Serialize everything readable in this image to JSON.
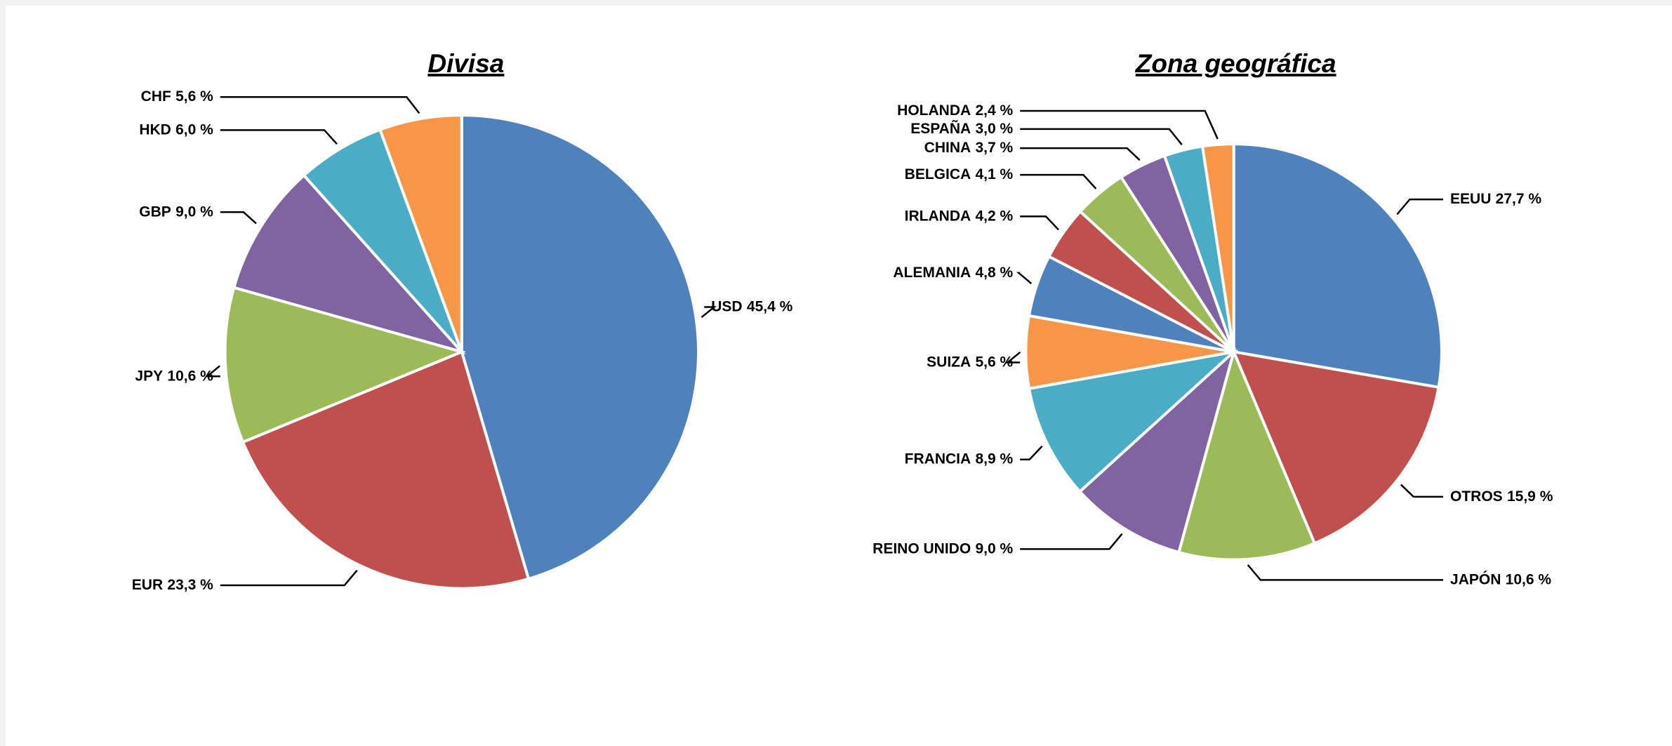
{
  "chart_data": [
    {
      "type": "pie",
      "title": "Divisa",
      "categories": [
        "USD",
        "EUR",
        "JPY",
        "GBP",
        "HKD",
        "CHF"
      ],
      "values": [
        45.4,
        23.3,
        10.6,
        9.0,
        6.0,
        5.6
      ],
      "value_labels": [
        "45,4 %",
        "23,3 %",
        "10,6 %",
        "9,0 %",
        "6,0 %",
        "5,6 %"
      ],
      "colors": [
        "#4f81bd",
        "#c0504d",
        "#9bbb59",
        "#8064a2",
        "#4bacc6",
        "#f79646"
      ]
    },
    {
      "type": "pie",
      "title": "Zona geográfica",
      "categories": [
        "EEUU",
        "OTROS",
        "JAPÓN",
        "REINO UNIDO",
        "FRANCIA",
        "SUIZA",
        "ALEMANIA",
        "IRLANDA",
        "BELGICA",
        "CHINA",
        "ESPAÑA",
        "HOLANDA"
      ],
      "values": [
        27.7,
        15.9,
        10.6,
        9.0,
        8.9,
        5.6,
        4.8,
        4.2,
        4.1,
        3.7,
        3.0,
        2.4
      ],
      "value_labels": [
        "27,7 %",
        "15,9 %",
        "10,6 %",
        "9,0 %",
        "8,9 %",
        "5,6 %",
        "4,8 %",
        "4,2 %",
        "4,1 %",
        "3,7 %",
        "3,0 %",
        "2,4 %"
      ],
      "colors": [
        "#4f81bd",
        "#c0504d",
        "#9bbb59",
        "#8064a2",
        "#4bacc6",
        "#f79646",
        "#4f81bd",
        "#c0504d",
        "#9bbb59",
        "#8064a2",
        "#4bacc6",
        "#f79646"
      ]
    }
  ]
}
